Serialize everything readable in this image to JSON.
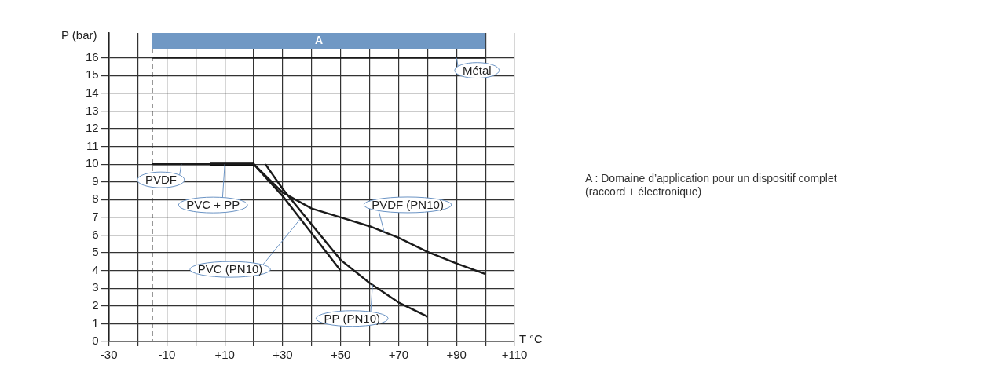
{
  "chart_data": {
    "type": "line",
    "xlabel": "T °C",
    "ylabel": "P (bar)",
    "xlim": [
      -30,
      110
    ],
    "ylim": [
      0,
      17.4
    ],
    "xticks": [
      -30,
      {
        "value": -20,
        "label": null
      },
      -10,
      {
        "value": 0,
        "label": null
      },
      {
        "value": 10,
        "label": "+10"
      },
      {
        "value": 20,
        "label": null
      },
      {
        "value": 30,
        "label": "+30"
      },
      {
        "value": 40,
        "label": null
      },
      {
        "value": 50,
        "label": "+50"
      },
      {
        "value": 60,
        "label": null
      },
      {
        "value": 70,
        "label": "+70"
      },
      {
        "value": 80,
        "label": null
      },
      {
        "value": 90,
        "label": "+90"
      },
      {
        "value": 100,
        "label": null
      },
      {
        "value": 110,
        "label": "+110"
      }
    ],
    "yticks": [
      0,
      1,
      2,
      3,
      4,
      5,
      6,
      7,
      8,
      9,
      10,
      11,
      12,
      13,
      14,
      15,
      16
    ],
    "grid": true,
    "legend": false,
    "marker": "none",
    "line_style": "solid",
    "series": [
      {
        "color": "#1a1a1a",
        "x": [
          -15,
          100
        ],
        "values": [
          16,
          16
        ]
      },
      {
        "color": "#1a1a1a",
        "x": [
          -15,
          20
        ],
        "values": [
          10,
          10
        ]
      },
      {
        "color": "#000000",
        "x": [
          5,
          20
        ],
        "values": [
          10,
          10
        ]
      },
      {
        "color": "#1a1a1a",
        "x": [
          20,
          30,
          40,
          50
        ],
        "values": [
          10,
          8.2,
          6.1,
          4
        ]
      },
      {
        "color": "#1a1a1a",
        "x": [
          24,
          30,
          40,
          50,
          60,
          70,
          80
        ],
        "values": [
          10,
          8.6,
          6.6,
          4.6,
          3.3,
          2.2,
          1.4
        ]
      },
      {
        "color": "#1a1a1a",
        "x": [
          20,
          30,
          40,
          50,
          60,
          70,
          80,
          90,
          100
        ],
        "values": [
          10,
          8.4,
          7.5,
          7.0,
          6.5,
          5.85,
          5.05,
          4.4,
          3.8
        ]
      }
    ],
    "ref_lines": [
      {
        "axis": "x",
        "value": -15,
        "line_style": "dashed",
        "color": "#333333"
      }
    ],
    "bands": [
      {
        "axis": "x",
        "from": -15,
        "to": 100,
        "label": "A",
        "color": "#7098c4"
      }
    ],
    "annotations": [
      {
        "text": "Métal",
        "x": 90,
        "y": 16
      },
      {
        "text": "PVDF",
        "x": -5,
        "y": 10
      },
      {
        "text": "PVC + PP",
        "x": 10,
        "y": 10
      },
      {
        "text": "PVC (PN10)",
        "x": 36,
        "y": 6.9
      },
      {
        "text": "PP (PN10)",
        "x": 61,
        "y": 3.2
      },
      {
        "text": "PVDF (PN10)",
        "x": 65,
        "y": 6.2
      },
      "A : Domaine d’application pour un dispositif complet\n(raccord + électronique)"
    ]
  }
}
